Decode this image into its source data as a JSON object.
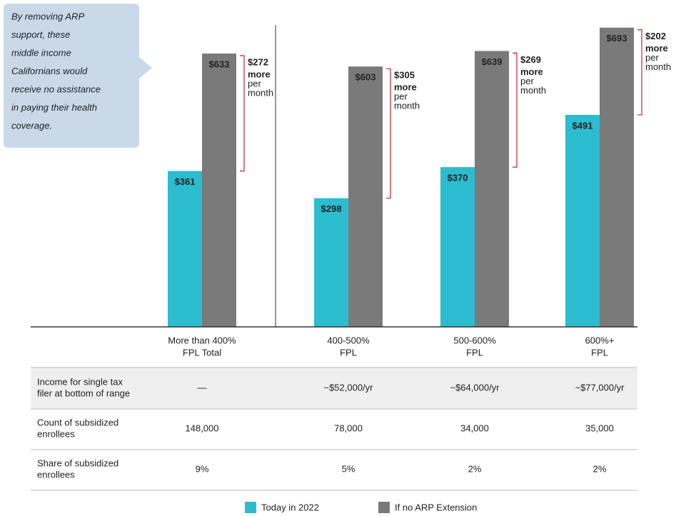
{
  "chart_data": {
    "type": "bar",
    "callout": [
      "By removing ARP",
      "support, these",
      "middle income",
      "Californians would",
      "receive no assistance",
      "in paying their health",
      "coverage."
    ],
    "categories": [
      [
        "More than 400%",
        "FPL Total"
      ],
      [
        "400-500%",
        "FPL"
      ],
      [
        "500-600%",
        "FPL"
      ],
      [
        "600%+",
        "FPL"
      ]
    ],
    "series": [
      {
        "name": "Today in 2022",
        "color": "#2bbcd0",
        "values": [
          361,
          298,
          370,
          491
        ],
        "value_labels": [
          "$361",
          "$298",
          "$370",
          "$491"
        ]
      },
      {
        "name": "If no ARP Extension",
        "color": "#7a7a7a",
        "values": [
          633,
          603,
          639,
          693
        ],
        "value_labels": [
          "$633",
          "$603",
          "$639",
          "$693"
        ]
      }
    ],
    "differences": {
      "color": "#cc1f2d",
      "values": [
        272,
        305,
        269,
        202
      ],
      "value_labels": [
        "$272",
        "$305",
        "$269",
        "$202"
      ],
      "more": "more",
      "per": "per",
      "month": "month"
    },
    "table": {
      "rows": [
        {
          "label": [
            "Income for single tax",
            "filer at bottom of range"
          ],
          "cells": [
            "—",
            "~$52,000/yr",
            "~$64,000/yr",
            "~$77,000/yr"
          ],
          "shaded": true
        },
        {
          "label": [
            "Count of subsidized",
            "enrollees"
          ],
          "cells": [
            "148,000",
            "78,000",
            "34,000",
            "35,000"
          ],
          "shaded": false
        },
        {
          "label": [
            "Share of subsidized",
            "enrollees"
          ],
          "cells": [
            "9%",
            "5%",
            "2%",
            "2%"
          ],
          "shaded": false
        }
      ]
    }
  }
}
